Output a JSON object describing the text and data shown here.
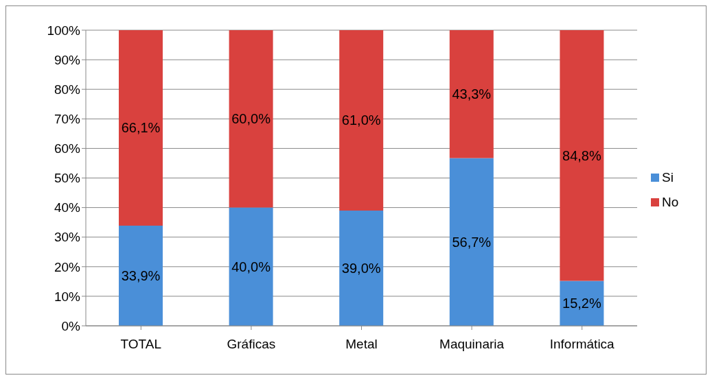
{
  "chart_data": {
    "type": "bar",
    "stacked": true,
    "categories": [
      "TOTAL",
      "Gráficas",
      "Metal",
      "Maquinaria",
      "Informática"
    ],
    "series": [
      {
        "name": "Si",
        "color": "#4a8fd8",
        "values": [
          33.9,
          40.0,
          39.0,
          56.7,
          15.2
        ],
        "value_labels": [
          "33,9%",
          "40,0%",
          "39,0%",
          "56,7%",
          "15,2%"
        ]
      },
      {
        "name": "No",
        "color": "#d9413e",
        "values": [
          66.1,
          60.0,
          61.0,
          43.3,
          84.8
        ],
        "value_labels": [
          "66,1%",
          "60,0%",
          "61,0%",
          "43,3%",
          "84,8%"
        ]
      }
    ],
    "ylim": [
      0,
      100
    ],
    "yticks": [
      {
        "value": 0,
        "label": "0%"
      },
      {
        "value": 10,
        "label": "10%"
      },
      {
        "value": 20,
        "label": "20%"
      },
      {
        "value": 30,
        "label": "30%"
      },
      {
        "value": 40,
        "label": "40%"
      },
      {
        "value": 50,
        "label": "50%"
      },
      {
        "value": 60,
        "label": "60%"
      },
      {
        "value": 70,
        "label": "70%"
      },
      {
        "value": 80,
        "label": "80%"
      },
      {
        "value": 90,
        "label": "90%"
      },
      {
        "value": 100,
        "label": "100%"
      }
    ],
    "grid": "y",
    "legend": "right"
  }
}
